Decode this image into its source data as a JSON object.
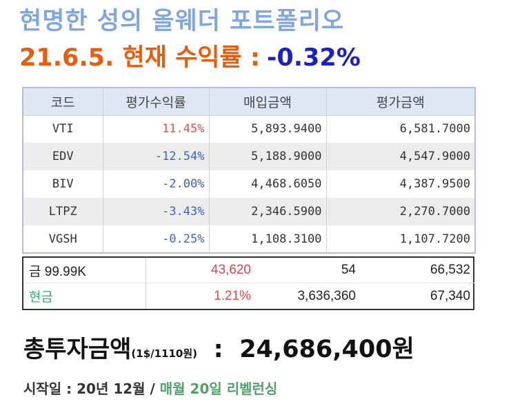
{
  "title": "현명한 성의 올웨더 포트폴리오",
  "return_label": "21.6.5. 현재 수익률 :",
  "return_value": "-0.32%",
  "table": {
    "headers": [
      "코드",
      "평가수익률",
      "매입금액",
      "평가금액"
    ],
    "rows": [
      {
        "code": "VTI",
        "return": "11.45%",
        "buy": "5,893.9400",
        "value": "6,581.7000",
        "sign": "pos"
      },
      {
        "code": "EDV",
        "return": "-12.54%",
        "buy": "5,188.9000",
        "value": "4,547.9000",
        "sign": "neg"
      },
      {
        "code": "BIV",
        "return": "-2.00%",
        "buy": "4,468.6050",
        "value": "4,387.9500",
        "sign": "neg"
      },
      {
        "code": "LTPZ",
        "return": "-3.43%",
        "buy": "2,346.5900",
        "value": "2,270.7000",
        "sign": "neg"
      },
      {
        "code": "VGSH",
        "return": "-0.25%",
        "buy": "1,108.3100",
        "value": "1,107.7200",
        "sign": "neg"
      }
    ]
  },
  "summary": {
    "gold": {
      "name": "금 99.99K",
      "profit": "43,620",
      "qty": "54",
      "value": "66,532"
    },
    "cash": {
      "name": "현금",
      "rate": "1.21%",
      "buy": "3,636,360",
      "value": "67,340"
    }
  },
  "total": {
    "label": "총투자금액",
    "rate_note": "(1$/1110원)",
    "colon": ":",
    "amount": "24,686,400원"
  },
  "footer": {
    "start": "시작일 : 20년 12월 /",
    "rebalance": "매월 20일 리벨런싱"
  }
}
